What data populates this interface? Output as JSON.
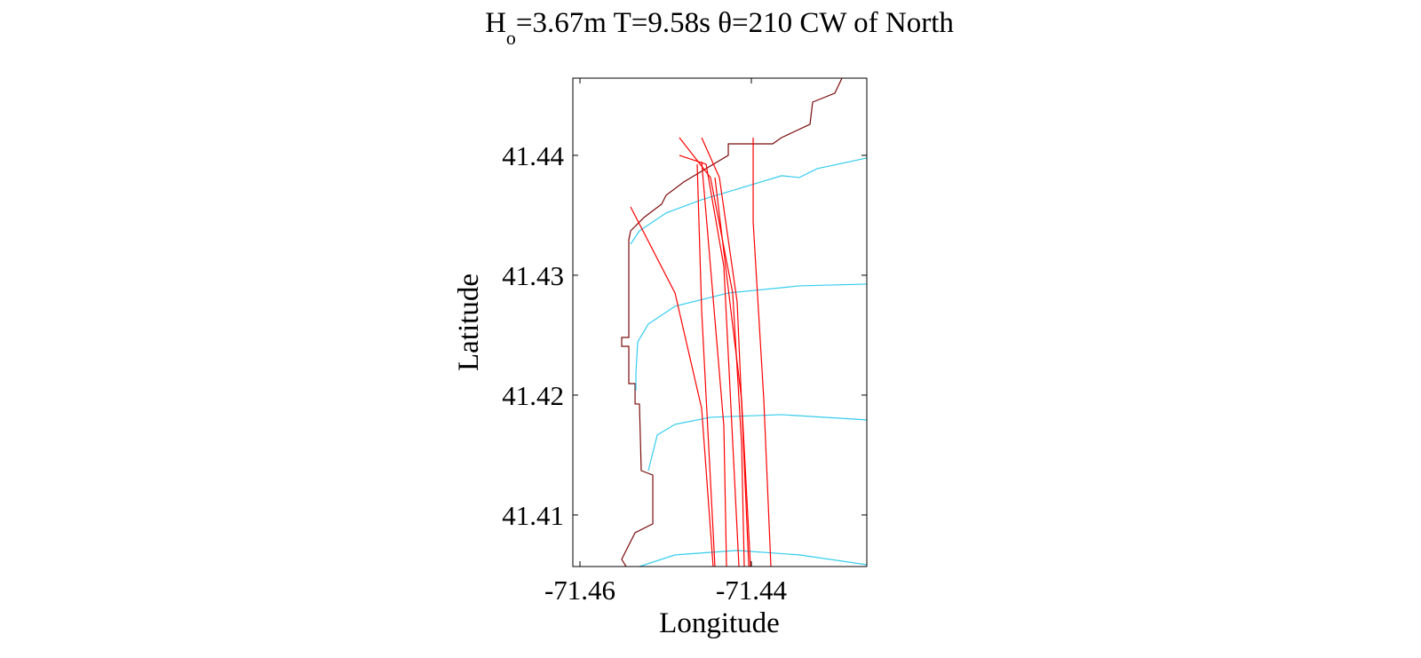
{
  "chart_data": {
    "type": "line",
    "title": [
      "H",
      "o",
      "=3.67m T=9.58s θ=210 CW of North"
    ],
    "xlabel": "Longitude",
    "ylabel": "Latitude",
    "xlim": [
      -71.46083,
      -71.42653
    ],
    "ylim": [
      41.4057,
      41.44644
    ],
    "xticks": [
      -71.46,
      -71.44
    ],
    "yticks": [
      41.41,
      41.42,
      41.43,
      41.44
    ],
    "series": [
      {
        "color": "#7a0a0a",
        "x": [
          -71.42943,
          -71.43026,
          -71.43285,
          -71.43316,
          -71.43648,
          -71.43751,
          -71.44269,
          -71.44269,
          -71.44788,
          -71.44995,
          -71.45047,
          -71.45254,
          -71.45409,
          -71.4543,
          -71.4543,
          -71.45513,
          -71.45513,
          -71.4543,
          -71.4543,
          -71.45357,
          -71.45357,
          -71.45306,
          -71.45285,
          -71.4515,
          -71.4515,
          -71.45357,
          -71.45461,
          -71.45513,
          -71.45461
        ],
        "y": [
          41.44644,
          41.44519,
          41.44444,
          41.44259,
          41.44148,
          41.44096,
          41.44096,
          41.44,
          41.43778,
          41.43667,
          41.43593,
          41.43481,
          41.4337,
          41.43296,
          41.42481,
          41.42481,
          41.42407,
          41.42407,
          41.42096,
          41.42096,
          41.41926,
          41.41926,
          41.4137,
          41.41333,
          41.40926,
          41.40852,
          41.40704,
          41.4063,
          41.4057
        ]
      },
      {
        "color": "#33ccee",
        "x": [
          -71.42653,
          -71.43233,
          -71.4344,
          -71.43648,
          -71.44062,
          -71.4458,
          -71.44995,
          -71.45306,
          -71.45409
        ],
        "y": [
          41.43978,
          41.43889,
          41.43815,
          41.4383,
          41.43741,
          41.4363,
          41.43519,
          41.4337,
          41.43259
        ]
      },
      {
        "color": "#33ccee",
        "x": [
          -71.42653,
          -71.4344,
          -71.44269,
          -71.44891,
          -71.45202,
          -71.45326,
          -71.45347,
          -71.45347
        ],
        "y": [
          41.42926,
          41.42911,
          41.42852,
          41.42741,
          41.42593,
          41.42444,
          41.42185,
          41.42037
        ]
      },
      {
        "color": "#33ccee",
        "x": [
          -71.42653,
          -71.43648,
          -71.44477,
          -71.44891,
          -71.45098,
          -71.4515,
          -71.45202
        ],
        "y": [
          41.41793,
          41.41837,
          41.41815,
          41.41756,
          41.41667,
          41.41519,
          41.4137
        ]
      },
      {
        "color": "#33ccee",
        "x": [
          -71.42653,
          -71.4344,
          -71.44166,
          -71.44891,
          -71.45306
        ],
        "y": [
          41.40585,
          41.40667,
          41.40704,
          41.40667,
          41.4057
        ]
      },
      {
        "color": "#ff0000",
        "x": [
          -71.45409,
          -71.44891,
          -71.4458,
          -71.44446
        ],
        "y": [
          41.4357,
          41.42852,
          41.41889,
          41.4057
        ]
      },
      {
        "color": "#ff0000",
        "x": [
          -71.4484,
          -71.44477,
          -71.44218,
          -71.44114,
          -71.44083
        ],
        "y": [
          41.44148,
          41.43815,
          41.42852,
          41.41593,
          41.4057
        ]
      },
      {
        "color": "#ff0000",
        "x": [
          -71.4458,
          -71.44373,
          -71.44166,
          -71.4403
        ],
        "y": [
          41.44148,
          41.43815,
          41.42778,
          41.4057
        ]
      },
      {
        "color": "#ff0000",
        "x": [
          -71.4484,
          -71.44528,
          -71.44321,
          -71.44145
        ],
        "y": [
          41.44,
          41.43926,
          41.43074,
          41.4057
        ]
      },
      {
        "color": "#ff0000",
        "x": [
          -71.4458,
          -71.44477,
          -71.44321,
          -71.4429
        ],
        "y": [
          41.43948,
          41.43074,
          41.41741,
          41.4057
        ]
      },
      {
        "color": "#ff0000",
        "x": [
          -71.43979,
          -71.43979,
          -71.43855,
          -71.43772
        ],
        "y": [
          41.44148,
          41.43444,
          41.41963,
          41.4057
        ]
      },
      {
        "color": "#ff0000",
        "x": [
          -71.44632,
          -71.4458,
          -71.44425
        ],
        "y": [
          41.43926,
          41.42704,
          41.4057
        ]
      },
      {
        "color": "#ff0000",
        "x": [
          -71.44425,
          -71.44114,
          -71.4401
        ],
        "y": [
          41.43815,
          41.41963,
          41.4057
        ]
      }
    ]
  }
}
